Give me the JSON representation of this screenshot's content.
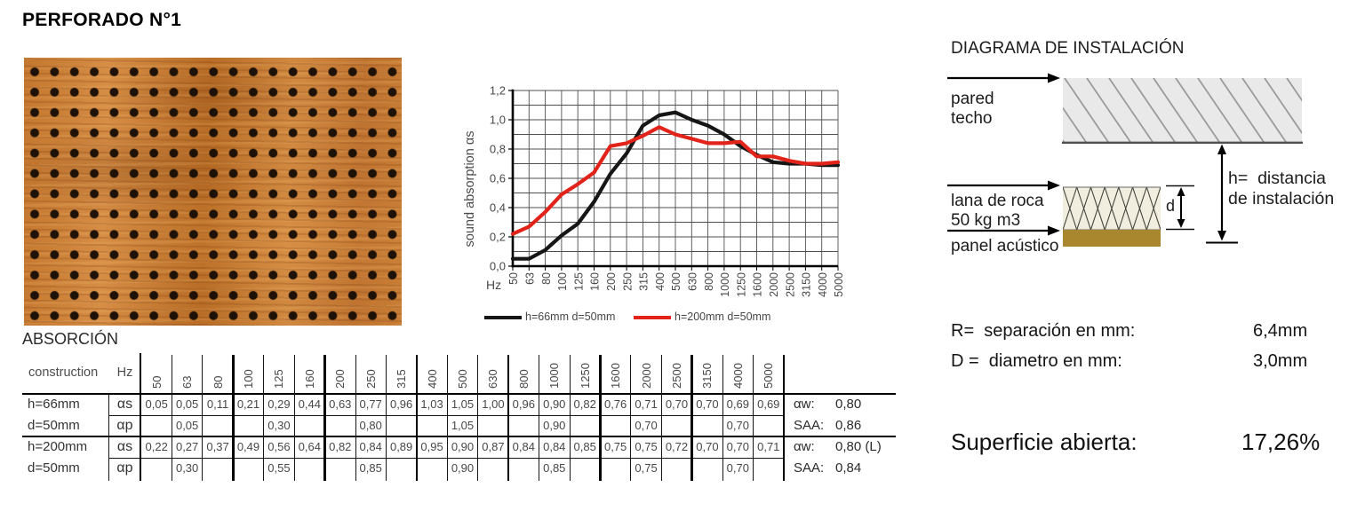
{
  "title": "PERFORADO N°1",
  "absorption_section": {
    "heading": "ABSORCIÓN",
    "table": {
      "construction_header": "construction",
      "hz_header": "Hz",
      "frequencies": [
        "50",
        "63",
        "80",
        "100",
        "125",
        "160",
        "200",
        "250",
        "315",
        "400",
        "500",
        "630",
        "800",
        "1000",
        "1250",
        "1600",
        "2000",
        "2500",
        "3150",
        "4000",
        "5000"
      ],
      "groups": [
        {
          "construction": [
            "h=66mm",
            "d=50mm"
          ],
          "rows": [
            {
              "label": "αs",
              "values": [
                "0,05",
                "0,05",
                "0,11",
                "0,21",
                "0,29",
                "0,44",
                "0,63",
                "0,77",
                "0,96",
                "1,03",
                "1,05",
                "1,00",
                "0,96",
                "0,90",
                "0,82",
                "0,76",
                "0,71",
                "0,70",
                "0,70",
                "0,69",
                "0,69"
              ]
            },
            {
              "label": "αp",
              "values": [
                "",
                "0,05",
                "",
                "",
                "0,30",
                "",
                "",
                "0,80",
                "",
                "",
                "1,05",
                "",
                "",
                "0,90",
                "",
                "",
                "0,70",
                "",
                "",
                "0,70",
                ""
              ]
            }
          ],
          "summary": [
            {
              "label": "αw:",
              "value": "0,80"
            },
            {
              "label": "SAA:",
              "value": "0,86"
            }
          ]
        },
        {
          "construction": [
            "h=200mm",
            "d=50mm"
          ],
          "rows": [
            {
              "label": "αs",
              "values": [
                "0,22",
                "0,27",
                "0,37",
                "0,49",
                "0,56",
                "0,64",
                "0,82",
                "0,84",
                "0,89",
                "0,95",
                "0,90",
                "0,87",
                "0,84",
                "0,84",
                "0,85",
                "0,75",
                "0,75",
                "0,72",
                "0,70",
                "0,70",
                "0,71"
              ]
            },
            {
              "label": "αp",
              "values": [
                "",
                "0,30",
                "",
                "",
                "0,55",
                "",
                "",
                "0,85",
                "",
                "",
                "0,90",
                "",
                "",
                "0,85",
                "",
                "",
                "0,75",
                "",
                "",
                "0,70",
                ""
              ]
            }
          ],
          "summary": [
            {
              "label": "αw:",
              "value": "0,80 (L)"
            },
            {
              "label": "SAA:",
              "value": "0,84"
            }
          ]
        }
      ]
    }
  },
  "chart_data": {
    "type": "line",
    "x": [
      50,
      63,
      80,
      100,
      125,
      160,
      200,
      250,
      315,
      400,
      500,
      630,
      800,
      1000,
      1250,
      1600,
      2000,
      2500,
      3150,
      4000,
      5000
    ],
    "series": [
      {
        "name": "h=66mm d=50mm",
        "color": "#161616",
        "values": [
          0.05,
          0.05,
          0.11,
          0.21,
          0.29,
          0.44,
          0.63,
          0.77,
          0.96,
          1.03,
          1.05,
          1.0,
          0.96,
          0.9,
          0.82,
          0.76,
          0.71,
          0.7,
          0.7,
          0.69,
          0.69
        ]
      },
      {
        "name": "h=200mm d=50mm",
        "color": "#e2231a",
        "values": [
          0.22,
          0.27,
          0.37,
          0.49,
          0.56,
          0.64,
          0.82,
          0.84,
          0.89,
          0.95,
          0.9,
          0.87,
          0.84,
          0.84,
          0.85,
          0.75,
          0.75,
          0.72,
          0.7,
          0.7,
          0.71
        ]
      }
    ],
    "ylabel": "sound absorption αs",
    "x_unit_label": "Hz",
    "ylim": [
      0,
      1.2
    ],
    "ytick_step": 0.2,
    "minor_grid_step": 0.1,
    "grid": true,
    "legend_position": "bottom"
  },
  "installation": {
    "heading": "DIAGRAMA DE INSTALACIÓN",
    "labels": {
      "wall": "pared",
      "ceiling": "techo",
      "wool_line1": "lana de roca",
      "wool_line2": "50 kg m3",
      "panel": "panel acústico",
      "d_dim": "d",
      "h_dim_line1": "h=  distancia",
      "h_dim_line2": "de instalación"
    }
  },
  "specs": {
    "rows": [
      {
        "label": "R=  separación en mm:",
        "value": "6,4mm"
      },
      {
        "label": "D =  diametro en mm:",
        "value": "3,0mm"
      }
    ],
    "open_surface": {
      "label": "Superficie abierta:",
      "value": "17,26%"
    }
  }
}
